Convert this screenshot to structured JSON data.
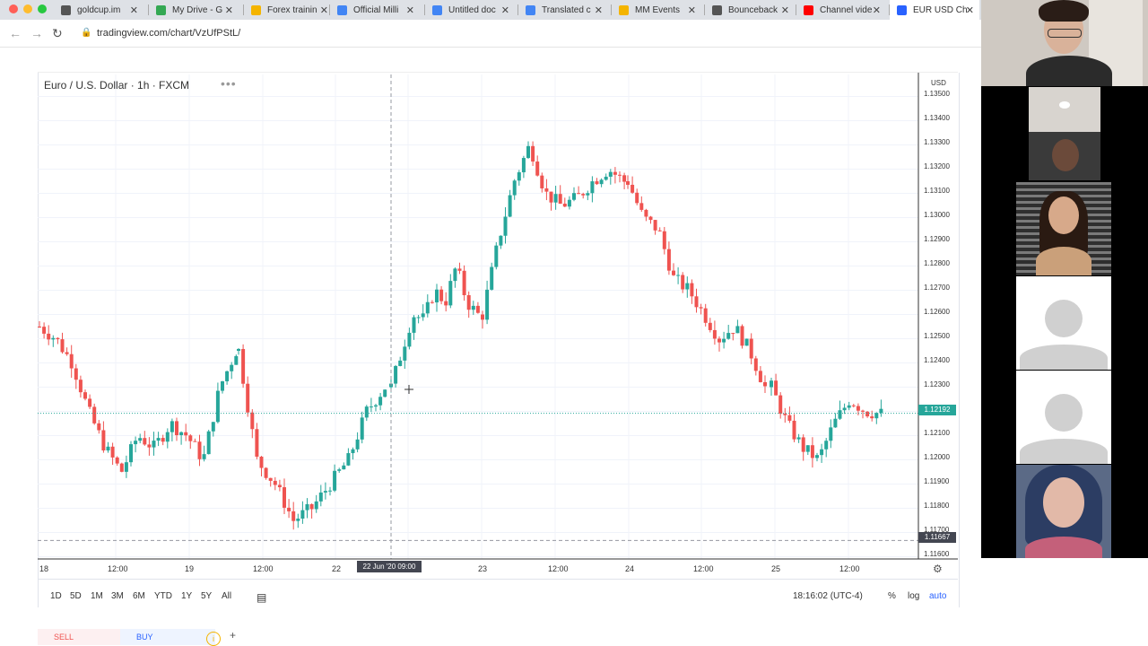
{
  "browser": {
    "tabs": [
      {
        "title": "goldcup.im",
        "fav_color": "#555555"
      },
      {
        "title": "My Drive - G",
        "fav_color": "#34a853"
      },
      {
        "title": "Forex trainin",
        "fav_color": "#f4b400"
      },
      {
        "title": "Official Milli",
        "fav_color": "#4285f4"
      },
      {
        "title": "Untitled doc",
        "fav_color": "#4285f4"
      },
      {
        "title": "Translated c",
        "fav_color": "#4285f4"
      },
      {
        "title": "MM Events",
        "fav_color": "#f4b400"
      },
      {
        "title": "Bounceback",
        "fav_color": "#555555"
      },
      {
        "title": "Channel vide",
        "fav_color": "#ff0000"
      },
      {
        "title": "EUR USD Ch",
        "fav_color": "#2962ff"
      }
    ],
    "url": "tradingview.com/chart/VzUfPStL/"
  },
  "chart": {
    "symbol": "Euro / U.S. Dollar · 1h · FXCM",
    "currency": "USD",
    "current_price": "1.12192",
    "cursor_price": "1.11667",
    "cursor_time": "22 Jun '20  09:00",
    "price_labels": [
      "1.13500",
      "1.13400",
      "1.13300",
      "1.13200",
      "1.13100",
      "1.13000",
      "1.12900",
      "1.12800",
      "1.12700",
      "1.12600",
      "1.12500",
      "1.12400",
      "1.12300",
      "1.12100",
      "1.12000",
      "1.11900",
      "1.11800",
      "1.11700",
      "1.11600"
    ],
    "time_labels": [
      "18",
      "12:00",
      "19",
      "12:00",
      "22",
      "23",
      "12:00",
      "24",
      "12:00",
      "25",
      "12:00"
    ],
    "ranges": [
      "1D",
      "5D",
      "1M",
      "3M",
      "6M",
      "YTD",
      "1Y",
      "5Y",
      "All"
    ],
    "clock": "18:16:02 (UTC-4)",
    "options": [
      "%",
      "log",
      "auto"
    ],
    "sell_label": "SELL",
    "buy_label": "BUY",
    "colors": {
      "up": "#26a69a",
      "down": "#ef5350",
      "current": "#26a69a"
    }
  },
  "chart_data": {
    "type": "candlestick",
    "title": "Euro / U.S. Dollar · 1h · FXCM",
    "x_ticks": [
      "18",
      "12:00",
      "19",
      "12:00",
      "22",
      "23",
      "12:00",
      "24",
      "12:00",
      "25",
      "12:00"
    ],
    "ylim": [
      1.116,
      1.1355
    ],
    "segments": [
      {
        "from": "18",
        "to": "19 12:00",
        "close_points": [
          1.1255,
          1.125,
          1.124,
          1.122,
          1.1205,
          1.1195,
          1.121,
          1.1205,
          1.1215,
          1.121,
          1.12,
          1.123,
          1.1245
        ]
      },
      {
        "from": "19 12:00",
        "to": "22",
        "close_points": [
          1.1245,
          1.12,
          1.119,
          1.1175,
          1.118,
          1.119,
          1.12,
          1.122,
          1.123
        ]
      },
      {
        "from": "22",
        "to": "23",
        "close_points": [
          1.123,
          1.1245,
          1.126,
          1.1258,
          1.127,
          1.1265,
          1.128,
          1.1265,
          1.126
        ]
      },
      {
        "from": "23",
        "to": "24",
        "close_points": [
          1.126,
          1.129,
          1.1315,
          1.133,
          1.131,
          1.1305,
          1.1308,
          1.1315,
          1.132,
          1.1315
        ]
      },
      {
        "from": "24",
        "to": "25",
        "close_points": [
          1.1315,
          1.13,
          1.1295,
          1.1275,
          1.127,
          1.126,
          1.125,
          1.1255,
          1.1245,
          1.123
        ]
      },
      {
        "from": "25",
        "to": "25 12:00+",
        "close_points": [
          1.123,
          1.1215,
          1.1205,
          1.12,
          1.1215,
          1.1225,
          1.122,
          1.1219
        ]
      }
    ],
    "current_price": 1.12192,
    "cursor_price": 1.11667,
    "grid": true
  },
  "participants": [
    {
      "name": "speaker",
      "type": "video"
    },
    {
      "name": "participant-2",
      "type": "video"
    },
    {
      "name": "participant-3",
      "type": "video"
    },
    {
      "name": "participant-4",
      "type": "placeholder"
    },
    {
      "name": "participant-5",
      "type": "placeholder"
    },
    {
      "name": "participant-6",
      "type": "video"
    }
  ]
}
